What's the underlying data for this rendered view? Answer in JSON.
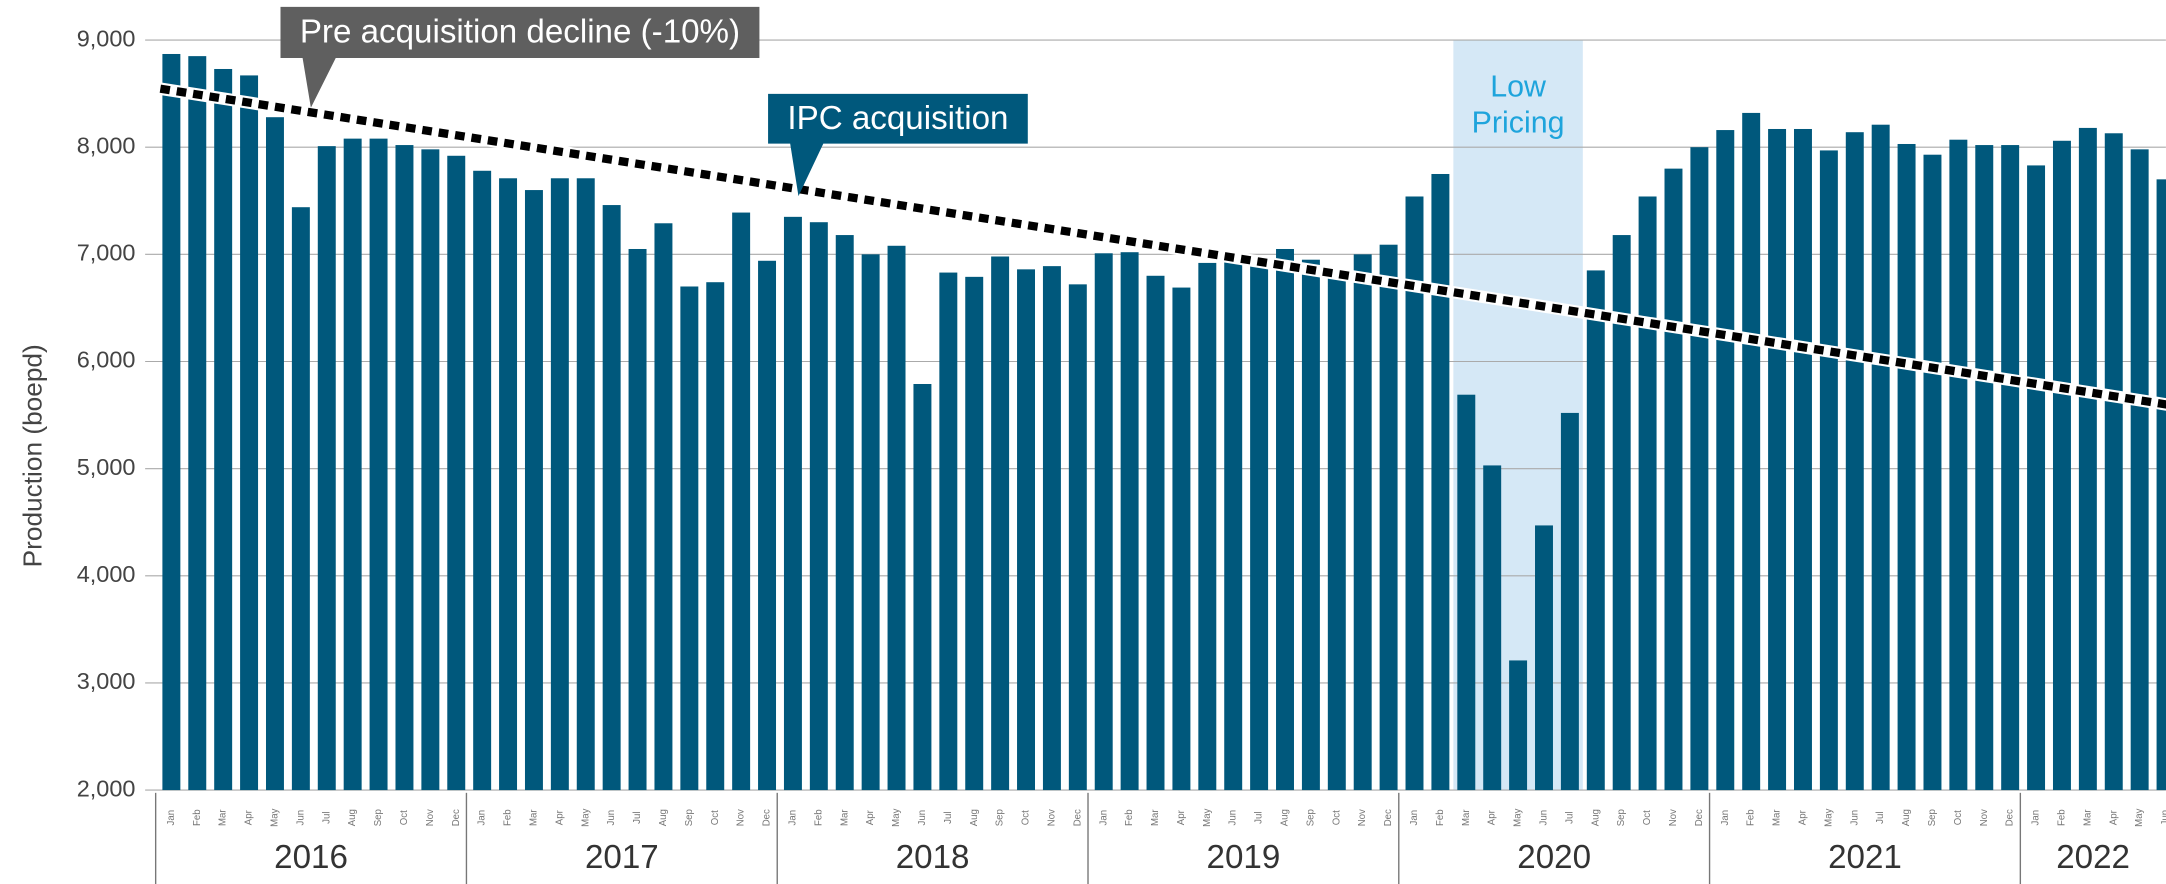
{
  "chart_data": {
    "type": "bar",
    "y_label": "Production (boepd)",
    "color": "#00587c",
    "categories": [
      "Jan",
      "Feb",
      "Mar",
      "Apr",
      "May",
      "Jun",
      "Jul",
      "Aug",
      "Sep",
      "Oct",
      "Nov",
      "Dec",
      "Jan",
      "Feb",
      "Mar",
      "Apr",
      "May",
      "Jun",
      "Jul",
      "Aug",
      "Sep",
      "Oct",
      "Nov",
      "Dec",
      "Jan",
      "Feb",
      "Mar",
      "Apr",
      "May",
      "Jun",
      "Jul",
      "Aug",
      "Sep",
      "Oct",
      "Nov",
      "Dec",
      "Jan",
      "Feb",
      "Mar",
      "Apr",
      "May",
      "Jun",
      "Jul",
      "Aug",
      "Sep",
      "Oct",
      "Nov",
      "Dec",
      "Jan",
      "Feb",
      "Mar",
      "Apr",
      "May",
      "Jun",
      "Jul",
      "Aug",
      "Sep",
      "Oct",
      "Nov",
      "Dec",
      "Jan",
      "Feb",
      "Mar",
      "Apr",
      "May",
      "Jun",
      "Jul",
      "Aug",
      "Sep",
      "Oct",
      "Nov",
      "Dec",
      "Jan",
      "Feb",
      "Mar",
      "Apr",
      "May",
      "Jun"
    ],
    "years": [
      "2016",
      "2017",
      "2018",
      "2019",
      "2020",
      "2021",
      "2022"
    ],
    "values": [
      8870,
      8850,
      8730,
      8670,
      8280,
      7440,
      8010,
      8080,
      8080,
      8020,
      7980,
      7920,
      7780,
      7710,
      7600,
      7710,
      7710,
      7460,
      7050,
      7290,
      6700,
      6740,
      7390,
      6940,
      7350,
      7300,
      7180,
      7000,
      7080,
      5790,
      6830,
      6790,
      6980,
      6860,
      6890,
      6720,
      7010,
      7020,
      6800,
      6690,
      6920,
      7010,
      6950,
      7050,
      6950,
      6860,
      7000,
      7090,
      7540,
      7750,
      5690,
      5030,
      3210,
      4470,
      5520,
      6850,
      7180,
      7540,
      7800,
      8000,
      8160,
      8320,
      8170,
      8170,
      7970,
      8140,
      8210,
      8030,
      7930,
      8070,
      8020,
      8020,
      7830,
      8060,
      8180,
      8130,
      7980,
      7700
    ],
    "trend_values": [
      8530,
      5600
    ],
    "highlight": {
      "from": 50,
      "to": 54,
      "label": [
        "Low",
        "Pricing"
      ]
    },
    "annotations": [
      {
        "text": "Pre acquisition decline (-10%)",
        "index": 5,
        "color": "#5f5f5f"
      },
      {
        "text": "IPC acquisition",
        "index": 24,
        "color": "#00587c"
      }
    ],
    "ylim": [
      2000,
      9000
    ],
    "yticks": [
      {
        "value": 2000,
        "label": "2,000"
      },
      {
        "value": 3000,
        "label": "3,000"
      },
      {
        "value": 4000,
        "label": "4,000"
      },
      {
        "value": 5000,
        "label": "5,000"
      },
      {
        "value": 6000,
        "label": "6,000"
      },
      {
        "value": 7000,
        "label": "7,000"
      },
      {
        "value": 8000,
        "label": "8,000"
      },
      {
        "value": 9000,
        "label": "9,000"
      }
    ],
    "grid": true
  }
}
